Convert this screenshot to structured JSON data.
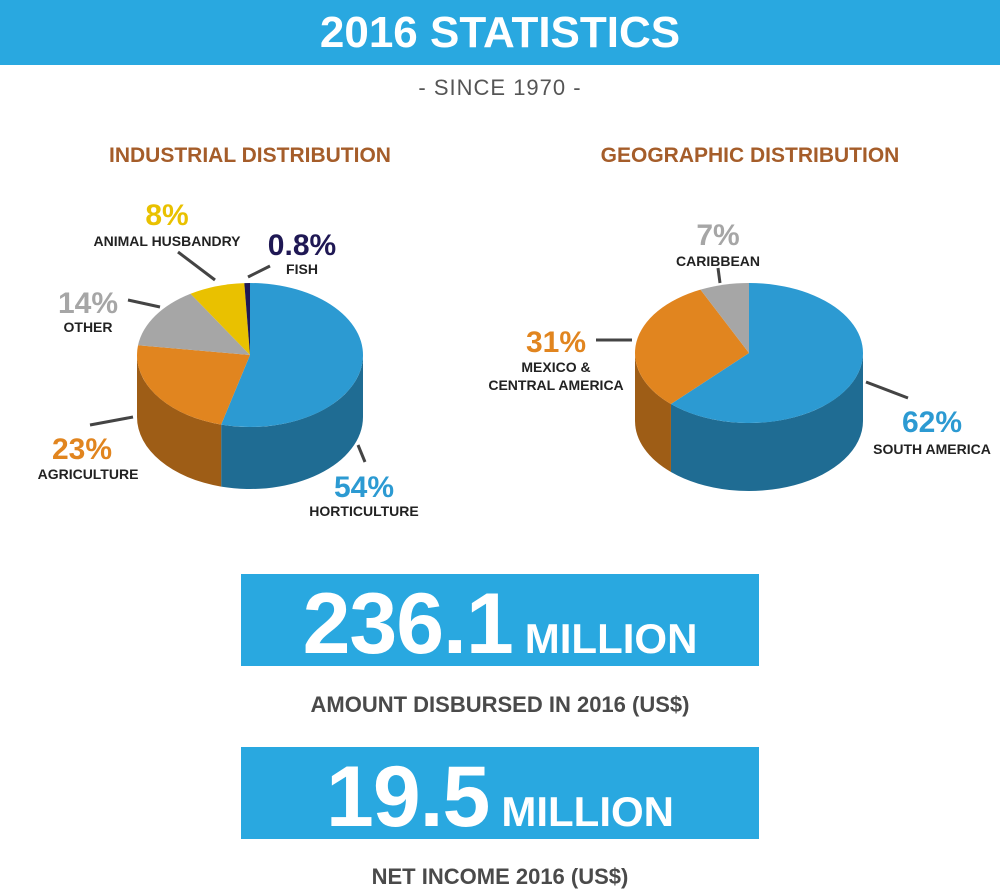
{
  "header": {
    "title": "2016 STATISTICS",
    "subtitle": "- SINCE 1970 -"
  },
  "colors": {
    "blue": "#2c9ad2",
    "orange": "#e1851f",
    "gray": "#a6a6a6",
    "yellow": "#e9c100",
    "navy": "#1f1854",
    "title_brown": "#a55d2a",
    "header_blue": "#29a8e0"
  },
  "chart_data": [
    {
      "type": "pie",
      "title": "INDUSTRIAL DISTRIBUTION",
      "slices": [
        {
          "label": "HORTICULTURE",
          "value": 54,
          "value_label": "54%",
          "color": "#2c9ad2"
        },
        {
          "label": "AGRICULTURE",
          "value": 23,
          "value_label": "23%",
          "color": "#e1851f"
        },
        {
          "label": "OTHER",
          "value": 14,
          "value_label": "14%",
          "color": "#a6a6a6"
        },
        {
          "label": "ANIMAL HUSBANDRY",
          "value": 8,
          "value_label": "8%",
          "color": "#e9c100"
        },
        {
          "label": "FISH",
          "value": 0.8,
          "value_label": "0.8%",
          "color": "#1f1854"
        }
      ]
    },
    {
      "type": "pie",
      "title": "GEOGRAPHIC DISTRIBUTION",
      "slices": [
        {
          "label": "SOUTH AMERICA",
          "value": 62,
          "value_label": "62%",
          "color": "#2c9ad2"
        },
        {
          "label": "MEXICO & CENTRAL AMERICA",
          "value": 31,
          "value_label": "31%",
          "color": "#e1851f"
        },
        {
          "label": "CARIBBEAN",
          "value": 7,
          "value_label": "7%",
          "color": "#a6a6a6"
        }
      ]
    }
  ],
  "stats": [
    {
      "number": "236.1",
      "unit": "MILLION",
      "caption": "AMOUNT DISBURSED IN 2016 (US$)"
    },
    {
      "number": "19.5",
      "unit": "MILLION",
      "caption": "NET INCOME 2016 (US$)"
    }
  ]
}
